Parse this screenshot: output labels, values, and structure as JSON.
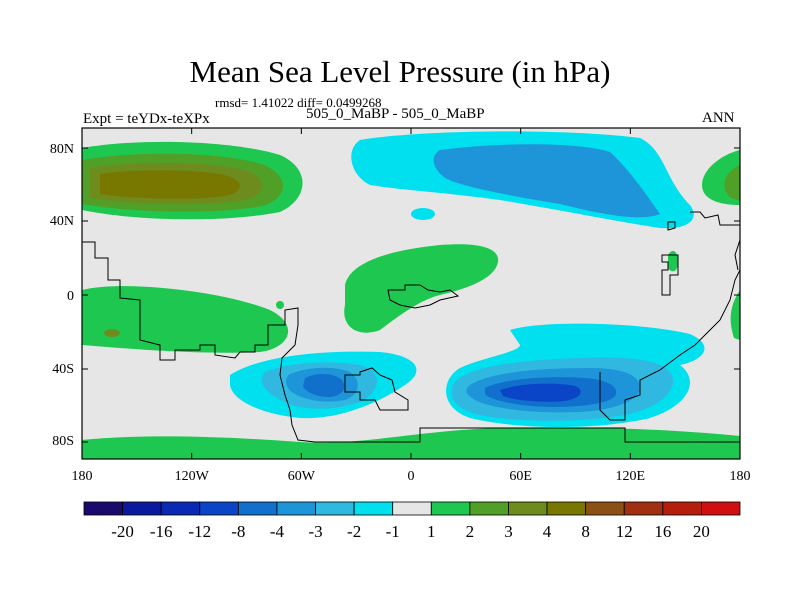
{
  "title": "Mean Sea Level Pressure (in hPa)",
  "stats": "rmsd= 1.41022 diff= 0.0499268",
  "expt": "Expt = teYDx-teXPx",
  "case": "505_0_MaBP - 505_0_MaBP",
  "season": "ANN",
  "map": {
    "lat_ticks": [
      "80N",
      "40N",
      "0",
      "40S",
      "80S"
    ],
    "lon_ticks": [
      "180",
      "120W",
      "60W",
      "0",
      "60E",
      "120E",
      "180"
    ]
  },
  "colorbar": {
    "labels": [
      "-20",
      "-16",
      "-12",
      "-8",
      "-4",
      "-3",
      "-2",
      "-1",
      "1",
      "2",
      "3",
      "4",
      "8",
      "12",
      "16",
      "20"
    ],
    "colors": [
      "#1a0a6e",
      "#0a1a9e",
      "#0a2ab4",
      "#0a45c8",
      "#1070cc",
      "#1e95d8",
      "#30b8e0",
      "#00e0ee",
      "#e6e6e6",
      "#1ec850",
      "#50a028",
      "#6e8c1e",
      "#787800",
      "#8c5014",
      "#a03010",
      "#b41e0a",
      "#d01010"
    ]
  }
}
